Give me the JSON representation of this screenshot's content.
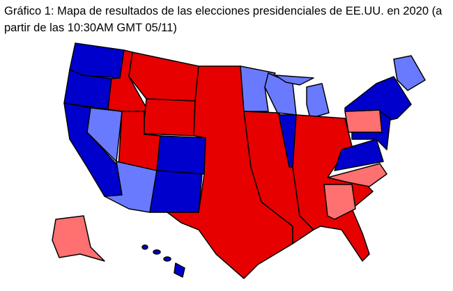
{
  "header": {
    "title": "Gráfico 1: Mapa de resultados de las elecciones presidenciales de EE.UU. en 2020 (a partir de las 10:30AM GMT 05/11)"
  }
}
